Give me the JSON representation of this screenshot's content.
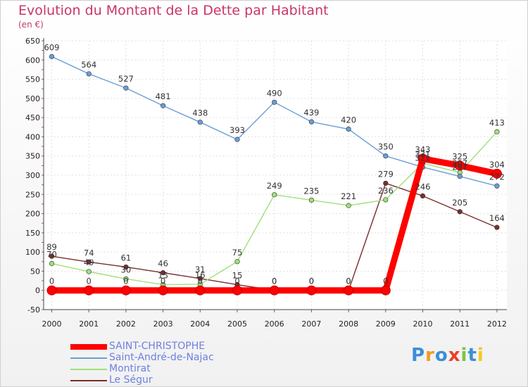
{
  "chart_data": {
    "type": "line",
    "title": "Evolution du Montant de la Dette par Habitant",
    "subtitle": "(en €)",
    "categories": [
      "2000",
      "2001",
      "2002",
      "2003",
      "2004",
      "2005",
      "2006",
      "2007",
      "2008",
      "2009",
      "2010",
      "2011",
      "2012"
    ],
    "ylim": [
      -50,
      650
    ],
    "yticks": [
      -50,
      0,
      50,
      100,
      150,
      200,
      250,
      300,
      350,
      400,
      450,
      500,
      550,
      600,
      650
    ],
    "grid": true,
    "legend_position": "bottom-left",
    "series": [
      {
        "name": "SAINT-CHRISTOPHE",
        "color": "#ff0000",
        "values": [
          0,
          0,
          0,
          0,
          0,
          0,
          0,
          0,
          0,
          0,
          343,
          325,
          304
        ]
      },
      {
        "name": "Saint-André-de-Najac",
        "color": "#6a9ed6",
        "values": [
          609,
          564,
          527,
          481,
          438,
          393,
          490,
          439,
          420,
          350,
          321,
          297,
          272
        ]
      },
      {
        "name": "Montirat",
        "color": "#9ee07a",
        "values": [
          70,
          49,
          30,
          15,
          16,
          75,
          249,
          235,
          221,
          236,
          331,
          307,
          413
        ]
      },
      {
        "name": "Le Ségur",
        "color": "#7a2e2e",
        "values": [
          89,
          74,
          61,
          46,
          31,
          15,
          0,
          0,
          0,
          279,
          246,
          205,
          164
        ]
      }
    ]
  },
  "logo": {
    "letters": [
      "P",
      "r",
      "o",
      "x",
      "i",
      "t",
      "i"
    ],
    "colors": [
      "#3a8fd8",
      "#f39a1e",
      "#3a8fd8",
      "#e8402a",
      "#7fc241",
      "#3a8fd8",
      "#f3c81e"
    ]
  }
}
